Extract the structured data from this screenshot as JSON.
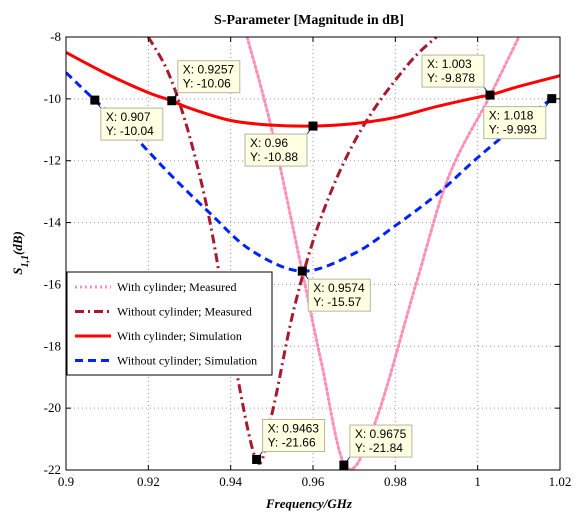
{
  "chart_data": {
    "type": "line",
    "title": "S-Parameter [Magnitude in dB]",
    "xlabel": "Frequency/GHz",
    "ylabel_main": "S",
    "ylabel_sub": "1,1",
    "ylabel_suffix": "(dB)",
    "xlim": [
      0.9,
      1.02
    ],
    "ylim": [
      -22,
      -8
    ],
    "xticks": [
      "0.9",
      "0.92",
      "0.94",
      "0.96",
      "0.98",
      "1",
      "1.02"
    ],
    "yticks": [
      "-22",
      "-20",
      "-18",
      "-16",
      "-14",
      "-12",
      "-10",
      "-8"
    ],
    "grid": true,
    "legend_position": "lower-left",
    "series": [
      {
        "name": "With cylinder; Measured",
        "color": "#ff8fb4",
        "style": "dotted",
        "x": [
          0.944,
          0.95,
          0.9574,
          0.962,
          0.968,
          0.975,
          0.985,
          0.993,
          1.003,
          1.01
        ],
        "y": [
          -8.0,
          -11.0,
          -15.6,
          -18.5,
          -21.9,
          -20.5,
          -16.0,
          -12.5,
          -9.9,
          -8.0
        ]
      },
      {
        "name": "Without cylinder; Measured",
        "color": "#a8192e",
        "style": "dashdot",
        "x": [
          0.92,
          0.925,
          0.93,
          0.935,
          0.94,
          0.9463,
          0.95,
          0.955,
          0.96,
          0.965,
          0.97,
          0.975,
          0.98,
          0.985,
          0.99
        ],
        "y": [
          -8.0,
          -9.2,
          -11.2,
          -14.0,
          -17.8,
          -21.7,
          -20.2,
          -17.0,
          -14.6,
          -12.8,
          -11.4,
          -10.3,
          -9.4,
          -8.6,
          -8.0
        ]
      },
      {
        "name": "With cylinder; Simulation",
        "color": "#ff0000",
        "style": "solid",
        "x": [
          0.9,
          0.91,
          0.92,
          0.9257,
          0.93,
          0.94,
          0.95,
          0.96,
          0.97,
          0.98,
          0.99,
          1.0,
          1.003,
          1.01,
          1.02
        ],
        "y": [
          -8.5,
          -9.2,
          -9.8,
          -10.06,
          -10.3,
          -10.7,
          -10.85,
          -10.88,
          -10.8,
          -10.6,
          -10.25,
          -9.95,
          -9.878,
          -9.6,
          -9.25
        ]
      },
      {
        "name": "Without cylinder; Simulation",
        "color": "#0022ff",
        "style": "dashed",
        "x": [
          0.9,
          0.907,
          0.915,
          0.925,
          0.935,
          0.945,
          0.9574,
          0.97,
          0.98,
          0.99,
          1.0,
          1.01,
          1.018
        ],
        "y": [
          -9.15,
          -10.04,
          -11.0,
          -12.4,
          -13.7,
          -14.9,
          -15.57,
          -15.0,
          -14.1,
          -13.1,
          -11.9,
          -10.8,
          -9.993
        ]
      }
    ],
    "datatips": [
      {
        "x": 0.907,
        "y": -10.04,
        "line1": "X: 0.907",
        "line2": "Y: -10.04",
        "placement": "below-right"
      },
      {
        "x": 0.9257,
        "y": -10.06,
        "line1": "X: 0.9257",
        "line2": "Y: -10.06",
        "placement": "above-right"
      },
      {
        "x": 0.96,
        "y": -10.88,
        "line1": "X: 0.96",
        "line2": "Y: -10.88",
        "placement": "below-left"
      },
      {
        "x": 1.003,
        "y": -9.878,
        "line1": "X: 1.003",
        "line2": "Y: -9.878",
        "placement": "above-left"
      },
      {
        "x": 1.018,
        "y": -9.993,
        "line1": "X: 1.018",
        "line2": "Y: -9.993",
        "placement": "below-left"
      },
      {
        "x": 0.9574,
        "y": -15.57,
        "line1": "X: 0.9574",
        "line2": "Y: -15.57",
        "placement": "below-right"
      },
      {
        "x": 0.9463,
        "y": -21.66,
        "line1": "X: 0.9463",
        "line2": "Y: -21.66",
        "placement": "above-right"
      },
      {
        "x": 0.9675,
        "y": -21.84,
        "line1": "X: 0.9675",
        "line2": "Y: -21.84",
        "placement": "above-right"
      }
    ]
  }
}
